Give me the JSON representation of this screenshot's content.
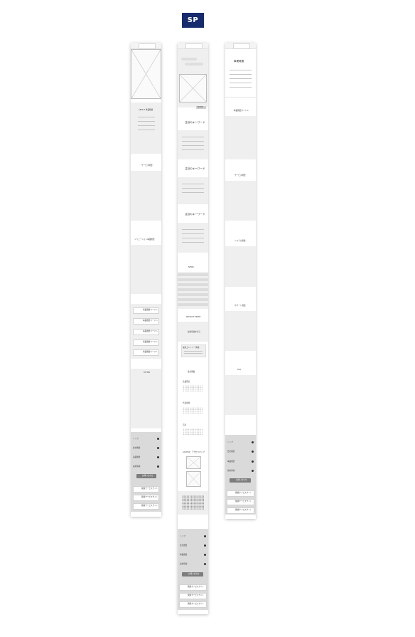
{
  "badge": {
    "label": "SP"
  },
  "columns": {
    "left": {
      "sections": [
        "ABOUT 事業概要",
        "サービス概要",
        "ソリューション事業概要",
        "OTHER"
      ],
      "list_items": [
        "事業概要ページへ",
        "事業概要ページへ",
        "事業概要ページへ",
        "事業概要ページへ",
        "事業概要ページへ"
      ],
      "footer_menu": [
        "トップ",
        "会社概要",
        "事業概要",
        "採用情報"
      ],
      "cta": "お問い合わせ",
      "footer_buttons": [
        "関連サービスサイト",
        "関連サービスサイト",
        "関連サービスサイト"
      ]
    },
    "middle": {
      "more": "MORE",
      "headings": [
        "注目のキーワード",
        "注目のキーワード",
        "注目のキーワード",
        "NEWS"
      ],
      "recruit": [
        "RECRUIT ENTRY",
        "採用情報を見る"
      ],
      "entry": "採用エントリー情報",
      "company": "会社概要",
      "subheads": [
        "企業理念",
        "代表挨拶",
        "沿革"
      ],
      "access": "ACCESS・アクセスマップ",
      "footer_menu": [
        "トップ",
        "会社概要",
        "事業概要",
        "採用情報"
      ],
      "cta": "お問い合わせ",
      "footer_buttons": [
        "関連サービスサイト",
        "関連サービスサイト",
        "関連サービスサイト"
      ]
    },
    "right": {
      "title": "事業概要",
      "sections": [
        "事業概要タイトル",
        "サービス概要",
        "システム概要",
        "サポート概要",
        "FAQ"
      ],
      "footer_menu": [
        "トップ",
        "会社概要",
        "事業概要",
        "採用情報"
      ],
      "cta": "お問い合わせ",
      "footer_buttons": [
        "関連サービスサイト",
        "関連サービスサイト",
        "関連サービスサイト"
      ]
    }
  }
}
